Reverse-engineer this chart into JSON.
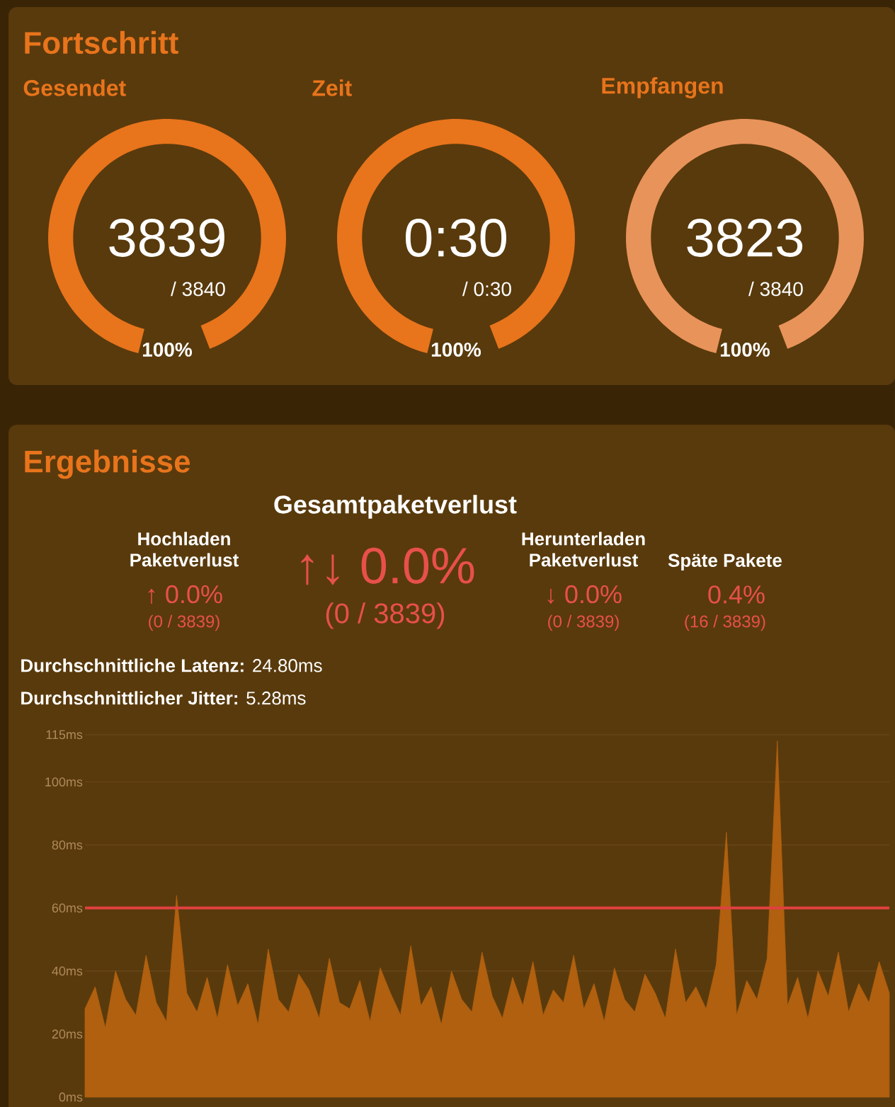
{
  "chart_data": [
    {
      "type": "other",
      "title": "Fortschritt"
    },
    {
      "type": "pie",
      "title": "Gesendet",
      "categories": [
        null
      ],
      "values": [
        100
      ],
      "colors": [
        "#e8741c"
      ],
      "annotations": [
        "3839",
        "/ 3840",
        "100%"
      ]
    },
    {
      "type": "pie",
      "title": "Zeit",
      "categories": [
        null
      ],
      "values": [
        100
      ],
      "colors": [
        "#e8741c"
      ],
      "annotations": [
        "0:30",
        "/ 0:30",
        "100%"
      ]
    },
    {
      "type": "pie",
      "title": "Empfangen",
      "categories": [
        null
      ],
      "values": [
        100
      ],
      "colors": [
        "#e8935a"
      ],
      "annotations": [
        "3823",
        "/ 3840",
        "100%"
      ]
    },
    {
      "type": "other",
      "title": "Ergebnisse",
      "subtitle": "Gesamtpaketverlust",
      "annotations": [
        "↑↓ 0.0%",
        "(0 / 3839)",
        "Hochladen Paketverlust",
        "↑ 0.0%",
        "(0 / 3839)",
        "Herunterladen Paketverlust",
        "↓ 0.0%",
        "(0 / 3839)",
        "Späte Pakete",
        "0.4%",
        "(16 / 3839)",
        "**Durchschnittliche Latenz:** 24.80ms",
        "**Durchschnittlicher Jitter:** 5.28ms"
      ]
    },
    {
      "type": "area",
      "categories": [
        null,
        null,
        null,
        null,
        null,
        null,
        null,
        null,
        null,
        null,
        null,
        null,
        null,
        null,
        null,
        null,
        null,
        null,
        null,
        null,
        null,
        null,
        null,
        null,
        null,
        null,
        null,
        null,
        null,
        null,
        null,
        null,
        null,
        null,
        null,
        null,
        null,
        null,
        null,
        null,
        null,
        null,
        null,
        null,
        null,
        null,
        null,
        null,
        null,
        null,
        null,
        null,
        null,
        null,
        null,
        null,
        null,
        null,
        null,
        null,
        null,
        null,
        null,
        null,
        null,
        null,
        null,
        null,
        null,
        null,
        null,
        null,
        null,
        null,
        null,
        null,
        null,
        null,
        null,
        null
      ],
      "values": [
        28,
        35,
        22,
        40,
        31,
        26,
        45,
        30,
        24,
        64,
        33,
        27,
        38,
        25,
        42,
        29,
        36,
        23,
        47,
        31,
        27,
        39,
        34,
        25,
        44,
        30,
        28,
        37,
        24,
        41,
        33,
        26,
        48,
        29,
        35,
        23,
        40,
        31,
        27,
        46,
        32,
        25,
        38,
        29,
        43,
        26,
        34,
        30,
        45,
        28,
        36,
        24,
        41,
        31,
        27,
        39,
        33,
        25,
        47,
        30,
        35,
        28,
        42,
        84,
        26,
        37,
        31,
        44,
        113,
        29,
        38,
        25,
        40,
        32,
        46,
        27,
        36,
        30,
        43,
        33
      ],
      "color": "#b0600f",
      "ylim": [
        0,
        115
      ],
      "yticks": [
        {
          "value": 0,
          "label": "0ms"
        },
        {
          "value": 20,
          "label": "20ms"
        },
        {
          "value": 40,
          "label": "40ms"
        },
        {
          "value": 60,
          "label": "60ms"
        },
        {
          "value": 80,
          "label": "80ms"
        },
        {
          "value": 100,
          "label": "100ms"
        },
        {
          "value": 115,
          "label": "115ms"
        }
      ],
      "ref_lines": [
        {
          "axis": "y",
          "value": 60,
          "color": "#e04040"
        }
      ],
      "grid": "y",
      "tick_labels": "y"
    }
  ]
}
